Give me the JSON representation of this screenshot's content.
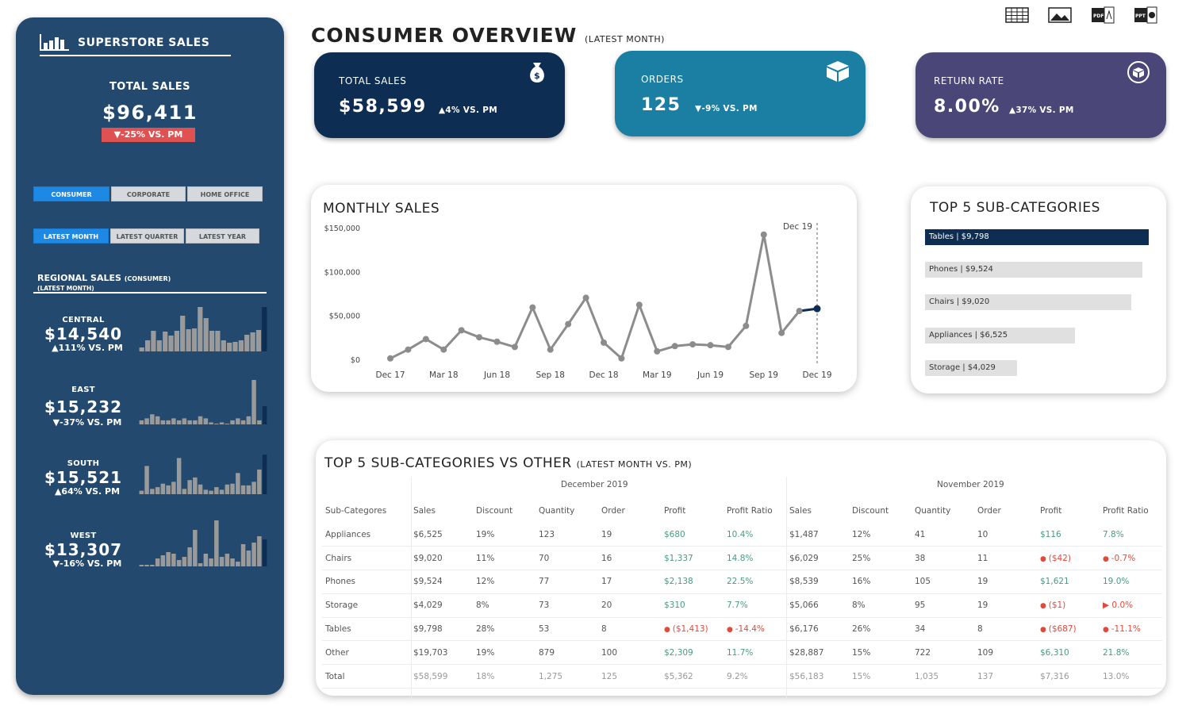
{
  "sidebar": {
    "brand": "SUPERSTORE SALES",
    "total_sales_label": "TOTAL SALES",
    "total_sales_value": "$96,411",
    "total_sales_change": "▼-25% VS. PM",
    "segment_buttons": [
      "CONSUMER",
      "CORPORATE",
      "HOME OFFICE"
    ],
    "period_buttons": [
      "LATEST MONTH",
      "LATEST QUARTER",
      "LATEST YEAR"
    ],
    "regional_title": "REGIONAL SALES",
    "regional_title_segment": "(CONSUMER)",
    "regional_subtitle": "(LATEST MONTH)",
    "regions": [
      {
        "name": "CENTRAL",
        "value": "$14,540",
        "change": "▲111% VS. PM",
        "spark": [
          5,
          14,
          26,
          14,
          25,
          20,
          26,
          45,
          28,
          29,
          56,
          42,
          26,
          26,
          14,
          11,
          12,
          14,
          21,
          24,
          27,
          56
        ]
      },
      {
        "name": "EAST",
        "value": "$15,232",
        "change": "▼-37% VS. PM",
        "spark": [
          2,
          3,
          5,
          4,
          2,
          2,
          3,
          2,
          3,
          2,
          2,
          4,
          3,
          1,
          0,
          1,
          0,
          2,
          3,
          2,
          4,
          22,
          2,
          9
        ]
      },
      {
        "name": "SOUTH",
        "value": "$15,521",
        "change": "▲64% VS. PM",
        "spark": [
          4,
          32,
          6,
          8,
          12,
          10,
          14,
          41,
          6,
          16,
          19,
          11,
          5,
          4,
          8,
          5,
          11,
          12,
          24,
          10,
          10,
          14,
          28,
          45
        ]
      },
      {
        "name": "WEST",
        "value": "$13,307",
        "change": "▼-16% VS. PM",
        "spark": [
          1,
          1,
          1,
          5,
          7,
          9,
          8,
          4,
          6,
          12,
          23,
          2,
          8,
          5,
          29,
          6,
          8,
          5,
          3,
          14,
          10,
          15,
          19,
          17
        ]
      }
    ]
  },
  "header": {
    "title": "CONSUMER OVERVIEW",
    "subtitle": "(LATEST MONTH)"
  },
  "kpis": [
    {
      "label": "TOTAL SALES",
      "value": "$58,599",
      "change": "▲4% VS. PM",
      "color": "#0d2d52",
      "icon": "money-bag-icon"
    },
    {
      "label": "ORDERS",
      "value": "125",
      "change": "▼-9% VS. PM",
      "color": "#1a7fa3",
      "icon": "box-icon"
    },
    {
      "label": "RETURN RATE",
      "value": "8.00%",
      "change": "▲37% VS. PM",
      "color": "#4a4778",
      "icon": "return-box-icon"
    }
  ],
  "chart_data": {
    "type": "line",
    "title": "MONTHLY SALES",
    "x": [
      "Dec 17",
      "Jan 18",
      "Feb 18",
      "Mar 18",
      "Apr 18",
      "May 18",
      "Jun 18",
      "Jul 18",
      "Aug 18",
      "Sep 18",
      "Oct 18",
      "Nov 18",
      "Dec 18",
      "Jan 19",
      "Feb 19",
      "Mar 19",
      "Apr 19",
      "May 19",
      "Jun 19",
      "Jul 19",
      "Aug 19",
      "Sep 19",
      "Oct 19",
      "Nov 19",
      "Dec 19"
    ],
    "values": [
      2000,
      12000,
      24000,
      12000,
      34000,
      26000,
      21000,
      15000,
      60000,
      12000,
      41000,
      71000,
      20000,
      2000,
      63000,
      10000,
      16000,
      18000,
      17000,
      15000,
      39000,
      143000,
      31000,
      56000,
      58599
    ],
    "x_tick_labels": [
      "Dec 17",
      "Mar 18",
      "Jun 18",
      "Sep 18",
      "Dec 18",
      "Mar 19",
      "Jun 19",
      "Sep 19",
      "Dec 19"
    ],
    "y_tick_labels": [
      "$150,000",
      "$100,000",
      "$50,000",
      "$0"
    ],
    "y_ticks": [
      150000,
      100000,
      50000,
      0
    ],
    "ylim": [
      0,
      150000
    ],
    "annotation": "Dec 19",
    "line_color": "#8c8c8c",
    "highlight_color": "#0d2d52"
  },
  "top5": {
    "title": "TOP 5 SUB-CATEGORIES",
    "items": [
      {
        "label": "Tables | $9,798",
        "value": 9798
      },
      {
        "label": "Phones | $9,524",
        "value": 9524
      },
      {
        "label": "Chairs | $9,020",
        "value": 9020
      },
      {
        "label": "Appliances | $6,525",
        "value": 6525
      },
      {
        "label": "Storage | $4,029",
        "value": 4029
      }
    ]
  },
  "table": {
    "title": "TOP 5 SUB-CATEGORIES VS OTHER",
    "subtitle": "(LATEST MONTH VS. PM)",
    "period_current": "December 2019",
    "period_previous": "November 2019",
    "columns": [
      "Sub-Categores",
      "Sales",
      "Discount",
      "Quantity",
      "Order",
      "Profit",
      "Profit Ratio",
      "Sales",
      "Discount",
      "Quantity",
      "Order",
      "Profit",
      "Profit Ratio"
    ],
    "rows": [
      [
        "Appliances",
        "$6,525",
        "19%",
        "123",
        "19",
        "$680",
        "10.4%",
        "$1,487",
        "12%",
        "41",
        "10",
        "$116",
        "7.8%"
      ],
      [
        "Chairs",
        "$9,020",
        "11%",
        "70",
        "16",
        "$1,337",
        "14.8%",
        "$6,029",
        "25%",
        "38",
        "11",
        "($42)",
        "-0.7%"
      ],
      [
        "Phones",
        "$9,524",
        "12%",
        "77",
        "17",
        "$2,138",
        "22.5%",
        "$8,539",
        "16%",
        "105",
        "19",
        "$1,621",
        "19.0%"
      ],
      [
        "Storage",
        "$4,029",
        "8%",
        "73",
        "20",
        "$310",
        "7.7%",
        "$5,066",
        "8%",
        "95",
        "19",
        "($1)",
        "0.0%"
      ],
      [
        "Tables",
        "$9,798",
        "28%",
        "53",
        "8",
        "($1,413)",
        "-14.4%",
        "$6,176",
        "26%",
        "34",
        "8",
        "($687)",
        "-11.1%"
      ],
      [
        "Other",
        "$19,703",
        "19%",
        "879",
        "100",
        "$2,309",
        "11.7%",
        "$28,887",
        "15%",
        "722",
        "109",
        "$6,310",
        "21.8%"
      ],
      [
        "Total",
        "$58,599",
        "18%",
        "1,275",
        "125",
        "$5,362",
        "9.2%",
        "$56,183",
        "15%",
        "1,035",
        "137",
        "$7,316",
        "13.0%"
      ]
    ]
  }
}
